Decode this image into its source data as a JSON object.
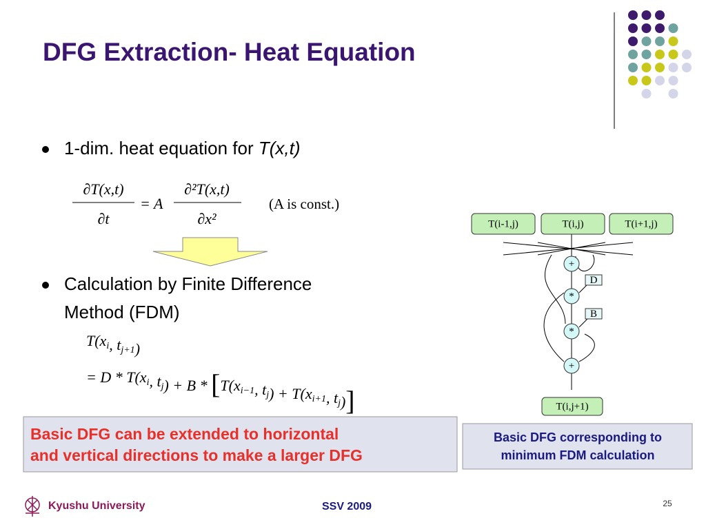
{
  "title": "DFG Extraction- Heat Equation",
  "bullets": [
    {
      "text": "1-dim. heat equation for ",
      "emph": "T(x,t)"
    },
    {
      "lines": [
        "Calculation by Finite Difference",
        "Method (FDM)"
      ]
    }
  ],
  "equation1": {
    "lhs_num": "∂T(x,t)",
    "lhs_den": "∂t",
    "mid": "= A",
    "rhs_num": "∂²T(x,t)",
    "rhs_den": "∂x²",
    "note": "(A is const.)"
  },
  "equation2": {
    "line1": [
      {
        "t": "T(x"
      },
      {
        "sub": "i"
      },
      {
        "t": ", t"
      },
      {
        "sub": "j+1"
      },
      {
        "t": ")"
      }
    ],
    "line2": [
      {
        "t": "= D * T(x"
      },
      {
        "sub": "i"
      },
      {
        "t": ", t"
      },
      {
        "sub": "j"
      },
      {
        "t": ") + B * "
      },
      {
        "big": "["
      },
      {
        "t": "T(x"
      },
      {
        "sub": "i−1"
      },
      {
        "t": ", t"
      },
      {
        "sub": "j"
      },
      {
        "t": ") + T(x"
      },
      {
        "sub": "i+1"
      },
      {
        "t": ", t"
      },
      {
        "sub": "j"
      },
      {
        "t": ")"
      },
      {
        "big": "]"
      }
    ]
  },
  "diagram": {
    "inputs": [
      "T(i-1,j)",
      "T(i,j)",
      "T(i+1,j)"
    ],
    "ops": [
      "+",
      "*",
      "*",
      "+"
    ],
    "constants": [
      "D",
      "B"
    ],
    "output": "T(i,j+1)"
  },
  "notes": {
    "left": [
      "Basic DFG can be extended to horizontal",
      "and vertical directions to make a larger DFG"
    ],
    "right": [
      "Basic DFG corresponding to",
      "minimum FDM calculation"
    ]
  },
  "footer": {
    "university": "Kyushu University",
    "event": "SSV 2009",
    "page": 25
  }
}
